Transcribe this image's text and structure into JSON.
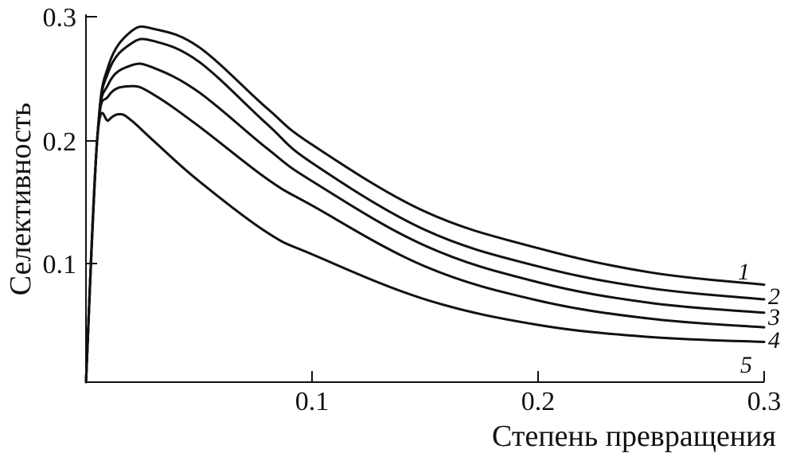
{
  "chart_data": {
    "type": "line",
    "title": "",
    "xlabel": "Степень превращения",
    "ylabel": "Селективность",
    "xlim": [
      0,
      0.3
    ],
    "ylim": [
      0,
      0.3
    ],
    "xticks": [
      0.1,
      0.2,
      0.3
    ],
    "xtick_labels": [
      "0.1",
      "0.2",
      "0.3"
    ],
    "yticks": [
      0.1,
      0.2,
      0.3
    ],
    "ytick_labels": [
      "0.1",
      "0.2",
      "0.3"
    ],
    "grid": false,
    "legend": "none",
    "series": [
      {
        "name": "1",
        "x": [
          0,
          0.005,
          0.01,
          0.02,
          0.03,
          0.05,
          0.08,
          0.1,
          0.15,
          0.2,
          0.25,
          0.3
        ],
        "values": [
          0,
          0.2,
          0.26,
          0.288,
          0.29,
          0.275,
          0.225,
          0.195,
          0.14,
          0.11,
          0.09,
          0.08
        ]
      },
      {
        "name": "2",
        "x": [
          0,
          0.005,
          0.01,
          0.02,
          0.03,
          0.05,
          0.08,
          0.1,
          0.15,
          0.2,
          0.25,
          0.3
        ],
        "values": [
          0,
          0.2,
          0.255,
          0.278,
          0.28,
          0.263,
          0.212,
          0.18,
          0.125,
          0.095,
          0.077,
          0.068
        ]
      },
      {
        "name": "3",
        "x": [
          0,
          0.005,
          0.01,
          0.02,
          0.03,
          0.05,
          0.08,
          0.1,
          0.15,
          0.2,
          0.25,
          0.3
        ],
        "values": [
          0,
          0.2,
          0.245,
          0.26,
          0.258,
          0.238,
          0.192,
          0.165,
          0.112,
          0.082,
          0.065,
          0.057
        ]
      },
      {
        "name": "4",
        "x": [
          0,
          0.005,
          0.01,
          0.02,
          0.03,
          0.05,
          0.08,
          0.1,
          0.15,
          0.2,
          0.25,
          0.3
        ],
        "values": [
          0,
          0.2,
          0.235,
          0.243,
          0.236,
          0.21,
          0.167,
          0.145,
          0.095,
          0.067,
          0.052,
          0.045
        ]
      },
      {
        "name": "5",
        "x": [
          0,
          0.005,
          0.01,
          0.015,
          0.02,
          0.03,
          0.05,
          0.08,
          0.1,
          0.15,
          0.2,
          0.25,
          0.3
        ],
        "values": [
          0,
          0.2,
          0.215,
          0.22,
          0.215,
          0.198,
          0.165,
          0.123,
          0.105,
          0.068,
          0.047,
          0.037,
          0.033
        ]
      }
    ]
  }
}
